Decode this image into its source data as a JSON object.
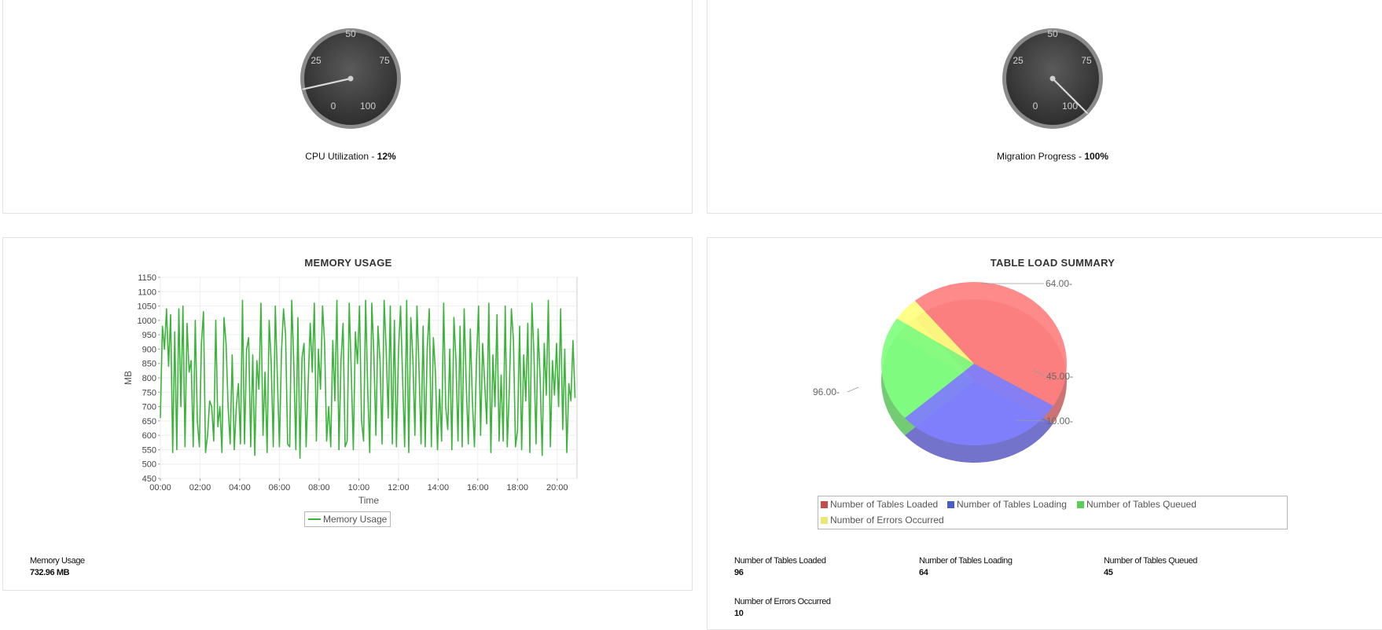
{
  "cpu_gauge": {
    "label": "CPU Utilization - ",
    "value_text": "12%",
    "value": 12,
    "ticks": [
      "0",
      "25",
      "50",
      "75",
      "100"
    ]
  },
  "migration_gauge": {
    "label": "Migration Progress - ",
    "value_text": "100%",
    "value": 100,
    "ticks": [
      "0",
      "25",
      "50",
      "75",
      "100"
    ]
  },
  "memory_chart": {
    "title": "MEMORY USAGE",
    "stat_label": "Memory Usage",
    "stat_value": "732.96 MB",
    "chart_data": {
      "type": "line",
      "title": "MEMORY USAGE",
      "xlabel": "Time",
      "ylabel": "MB",
      "ylim": [
        450,
        1150
      ],
      "yticks": [
        "450",
        "500",
        "550",
        "600",
        "650",
        "700",
        "750",
        "800",
        "850",
        "900",
        "950",
        "1000",
        "1050",
        "1100",
        "1150"
      ],
      "xticks": [
        "00:00",
        "02:00",
        "04:00",
        "06:00",
        "08:00",
        "10:00",
        "12:00",
        "14:00",
        "16:00",
        "18:00",
        "20:00"
      ],
      "xlim": [
        0,
        21
      ],
      "legend": "bottom",
      "grid": true,
      "series": [
        {
          "name": "Memory Usage",
          "color": "#3cb43c",
          "values": [
            660,
            980,
            900,
            1040,
            840,
            1020,
            540,
            960,
            550,
            1040,
            700,
            1050,
            560,
            990,
            820,
            860,
            560,
            1000,
            650,
            560,
            920,
            1030,
            540,
            600,
            720,
            700,
            580,
            1000,
            630,
            700,
            540,
            1010,
            920,
            700,
            570,
            880,
            550,
            700,
            780,
            570,
            1070,
            570,
            900,
            940,
            560,
            880,
            530,
            860,
            760,
            1060,
            600,
            820,
            540,
            1000,
            850,
            560,
            1050,
            800,
            560,
            890,
            1040,
            950,
            570,
            560,
            1070,
            850,
            550,
            1010,
            520,
            870,
            920,
            560,
            780,
            990,
            820,
            1060,
            580,
            900,
            760,
            1050,
            920,
            580,
            700,
            560,
            930,
            720,
            1070,
            550,
            860,
            990,
            560,
            580,
            1060,
            820,
            550,
            960,
            850,
            1050,
            650,
            580,
            1070,
            760,
            540,
            1060,
            880,
            600,
            980,
            860,
            570,
            1070,
            900,
            660,
            1050,
            570,
            1000,
            560,
            890,
            1050,
            800,
            560,
            1070,
            540,
            1010,
            870,
            600,
            1050,
            830,
            570,
            980,
            560,
            900,
            1040,
            560,
            940,
            820,
            550,
            760,
            580,
            1060,
            700,
            620,
            900,
            550,
            1010,
            860,
            580,
            980,
            560,
            1040,
            780,
            570,
            970,
            720,
            560,
            860,
            1050,
            600,
            920,
            780,
            640,
            1060,
            540,
            880,
            700,
            1020,
            580,
            810,
            580,
            1050,
            560,
            760,
            1040,
            930,
            560,
            620,
            980,
            550,
            880,
            720,
            990,
            540,
            1060,
            880,
            570,
            970,
            800,
            530,
            920,
            740,
            1070,
            560,
            860,
            740,
            920,
            700,
            1040,
            620,
            900,
            540,
            780,
            720,
            930,
            730
          ]
        }
      ]
    }
  },
  "table_chart": {
    "title": "TABLE LOAD SUMMARY",
    "chart_data": {
      "type": "pie",
      "title": "TABLE LOAD SUMMARY",
      "legend": "bottom",
      "slices": [
        {
          "name": "Number of Tables Loaded",
          "value": 96,
          "label": "96.00-",
          "color": "#ff8080",
          "swatch": "#c0504d"
        },
        {
          "name": "Number of Tables Loading",
          "value": 64,
          "label": "64.00-",
          "color": "#8080ff",
          "swatch": "#4a5cc8"
        },
        {
          "name": "Number of Tables Queued",
          "value": 45,
          "label": "45.00-",
          "color": "#80ff80",
          "swatch": "#58d058"
        },
        {
          "name": "Number of Errors Occurred",
          "value": 10,
          "label": "10.00-",
          "color": "#ffff80",
          "swatch": "#e8e878"
        }
      ]
    },
    "stats": [
      {
        "label": "Number of Tables Loaded",
        "value": "96"
      },
      {
        "label": "Number of Tables Loading",
        "value": "64"
      },
      {
        "label": "Number of Tables Queued",
        "value": "45"
      },
      {
        "label": "Number of Errors Occurred",
        "value": "10"
      }
    ]
  }
}
